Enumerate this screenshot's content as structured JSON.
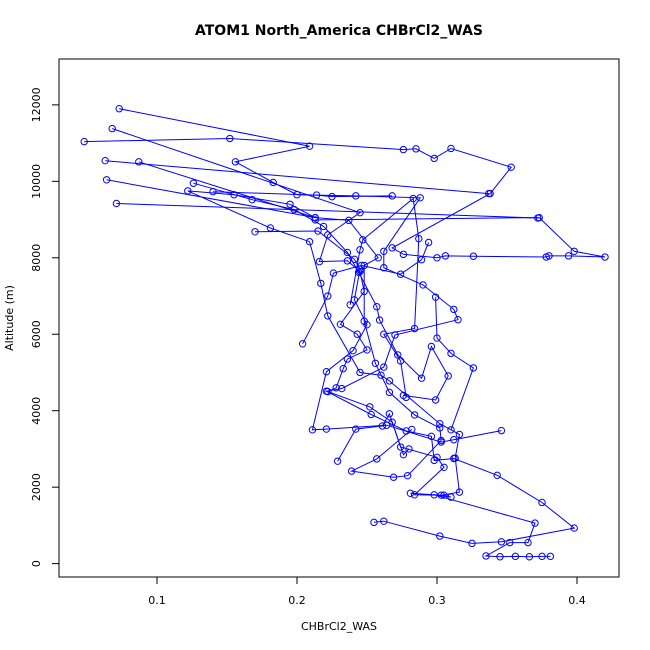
{
  "chart_data": {
    "type": "line",
    "title": "ATOM1 North_America CHBrCl2_WAS",
    "xlabel": "CHBrCl2_WAS",
    "ylabel": "Altitude (m)",
    "xlim": [
      0.03,
      0.43
    ],
    "ylim": [
      -350,
      13200
    ],
    "x_ticks": [
      0.1,
      0.2,
      0.3,
      0.4
    ],
    "x_tick_labels": [
      "0.1",
      "0.2",
      "0.3",
      "0.4"
    ],
    "y_ticks": [
      0,
      2000,
      4000,
      6000,
      8000,
      10000,
      12000
    ],
    "y_tick_labels": [
      "0",
      "2000",
      "4000",
      "6000",
      "8000",
      "10000",
      "12000"
    ],
    "grid": false,
    "marker": "open-circle",
    "color": "#0000ff",
    "series": [
      {
        "values": [
          {
            "x": 0.073,
            "y": 11900
          },
          {
            "x": 0.209,
            "y": 10920
          },
          {
            "x": 0.156,
            "y": 10510
          },
          {
            "x": 0.183,
            "y": 9970
          },
          {
            "x": 0.2,
            "y": 9650
          },
          {
            "x": 0.242,
            "y": 9620
          },
          {
            "x": 0.288,
            "y": 9570
          },
          {
            "x": 0.262,
            "y": 8170
          },
          {
            "x": 0.262,
            "y": 7740
          },
          {
            "x": 0.29,
            "y": 7290
          },
          {
            "x": 0.312,
            "y": 6650
          },
          {
            "x": 0.315,
            "y": 6380
          },
          {
            "x": 0.27,
            "y": 5980
          },
          {
            "x": 0.262,
            "y": 5140
          },
          {
            "x": 0.232,
            "y": 4580
          },
          {
            "x": 0.221,
            "y": 4510
          },
          {
            "x": 0.253,
            "y": 3900
          },
          {
            "x": 0.278,
            "y": 3470
          },
          {
            "x": 0.296,
            "y": 3330
          },
          {
            "x": 0.298,
            "y": 2700
          },
          {
            "x": 0.312,
            "y": 2750
          },
          {
            "x": 0.343,
            "y": 2310
          },
          {
            "x": 0.375,
            "y": 1600
          },
          {
            "x": 0.398,
            "y": 930
          },
          {
            "x": 0.346,
            "y": 570
          },
          {
            "x": 0.325,
            "y": 530
          },
          {
            "x": 0.302,
            "y": 720
          },
          {
            "x": 0.262,
            "y": 1110
          },
          {
            "x": 0.255,
            "y": 1080
          }
        ]
      },
      {
        "values": [
          {
            "x": 0.068,
            "y": 11380
          },
          {
            "x": 0.245,
            "y": 9180
          },
          {
            "x": 0.222,
            "y": 8600
          },
          {
            "x": 0.216,
            "y": 7900
          },
          {
            "x": 0.236,
            "y": 7920
          },
          {
            "x": 0.245,
            "y": 7640
          },
          {
            "x": 0.248,
            "y": 7120
          },
          {
            "x": 0.231,
            "y": 6260
          },
          {
            "x": 0.243,
            "y": 6000
          },
          {
            "x": 0.25,
            "y": 5590
          },
          {
            "x": 0.236,
            "y": 5350
          },
          {
            "x": 0.233,
            "y": 5100
          },
          {
            "x": 0.228,
            "y": 4600
          },
          {
            "x": 0.222,
            "y": 4500
          },
          {
            "x": 0.252,
            "y": 4100
          },
          {
            "x": 0.268,
            "y": 3700
          },
          {
            "x": 0.274,
            "y": 3050
          },
          {
            "x": 0.3,
            "y": 2780
          },
          {
            "x": 0.305,
            "y": 2520
          },
          {
            "x": 0.284,
            "y": 1800
          },
          {
            "x": 0.305,
            "y": 1790
          },
          {
            "x": 0.31,
            "y": 1740
          },
          {
            "x": 0.298,
            "y": 1800
          },
          {
            "x": 0.37,
            "y": 1060
          },
          {
            "x": 0.365,
            "y": 550
          },
          {
            "x": 0.352,
            "y": 550
          },
          {
            "x": 0.335,
            "y": 200
          },
          {
            "x": 0.345,
            "y": 180
          },
          {
            "x": 0.356,
            "y": 190
          },
          {
            "x": 0.366,
            "y": 180
          },
          {
            "x": 0.375,
            "y": 190
          },
          {
            "x": 0.381,
            "y": 190
          }
        ]
      },
      {
        "values": [
          {
            "x": 0.048,
            "y": 11040
          },
          {
            "x": 0.152,
            "y": 11120
          },
          {
            "x": 0.276,
            "y": 10830
          },
          {
            "x": 0.285,
            "y": 10850
          },
          {
            "x": 0.298,
            "y": 10600
          },
          {
            "x": 0.31,
            "y": 10860
          },
          {
            "x": 0.353,
            "y": 10370
          },
          {
            "x": 0.338,
            "y": 9680
          },
          {
            "x": 0.268,
            "y": 8260
          },
          {
            "x": 0.276,
            "y": 8090
          },
          {
            "x": 0.3,
            "y": 8000
          },
          {
            "x": 0.306,
            "y": 8050
          },
          {
            "x": 0.326,
            "y": 8040
          },
          {
            "x": 0.378,
            "y": 8020
          },
          {
            "x": 0.38,
            "y": 8050
          },
          {
            "x": 0.394,
            "y": 8050
          },
          {
            "x": 0.42,
            "y": 8020
          },
          {
            "x": 0.398,
            "y": 8170
          },
          {
            "x": 0.373,
            "y": 9050
          },
          {
            "x": 0.213,
            "y": 8990
          }
        ]
      },
      {
        "values": [
          {
            "x": 0.063,
            "y": 10540
          },
          {
            "x": 0.337,
            "y": 9680
          }
        ]
      },
      {
        "values": [
          {
            "x": 0.064,
            "y": 10040
          },
          {
            "x": 0.213,
            "y": 9050
          },
          {
            "x": 0.195,
            "y": 9400
          },
          {
            "x": 0.155,
            "y": 9650
          },
          {
            "x": 0.122,
            "y": 9750
          },
          {
            "x": 0.181,
            "y": 8780
          },
          {
            "x": 0.209,
            "y": 8420
          },
          {
            "x": 0.217,
            "y": 7330
          },
          {
            "x": 0.222,
            "y": 6480
          },
          {
            "x": 0.245,
            "y": 5000
          },
          {
            "x": 0.26,
            "y": 4930
          },
          {
            "x": 0.266,
            "y": 4780
          },
          {
            "x": 0.302,
            "y": 3660
          },
          {
            "x": 0.316,
            "y": 3380
          },
          {
            "x": 0.313,
            "y": 2760
          },
          {
            "x": 0.316,
            "y": 1870
          },
          {
            "x": 0.303,
            "y": 1790
          },
          {
            "x": 0.281,
            "y": 1840
          }
        ]
      },
      {
        "values": [
          {
            "x": 0.071,
            "y": 9420
          },
          {
            "x": 0.372,
            "y": 9040
          }
        ]
      },
      {
        "values": [
          {
            "x": 0.087,
            "y": 10510
          },
          {
            "x": 0.213,
            "y": 9050
          },
          {
            "x": 0.237,
            "y": 8980
          },
          {
            "x": 0.258,
            "y": 8000
          },
          {
            "x": 0.248,
            "y": 7800
          },
          {
            "x": 0.248,
            "y": 6340
          },
          {
            "x": 0.256,
            "y": 5240
          },
          {
            "x": 0.266,
            "y": 4480
          },
          {
            "x": 0.284,
            "y": 3890
          },
          {
            "x": 0.302,
            "y": 3550
          },
          {
            "x": 0.303,
            "y": 3220
          },
          {
            "x": 0.279,
            "y": 2300
          },
          {
            "x": 0.269,
            "y": 2260
          },
          {
            "x": 0.239,
            "y": 2420
          },
          {
            "x": 0.257,
            "y": 2740
          },
          {
            "x": 0.282,
            "y": 3510
          }
        ]
      },
      {
        "values": [
          {
            "x": 0.126,
            "y": 9950
          },
          {
            "x": 0.168,
            "y": 9520
          },
          {
            "x": 0.198,
            "y": 9260
          },
          {
            "x": 0.219,
            "y": 8820
          },
          {
            "x": 0.236,
            "y": 8140
          },
          {
            "x": 0.244,
            "y": 7620
          },
          {
            "x": 0.257,
            "y": 6720
          },
          {
            "x": 0.259,
            "y": 6370
          },
          {
            "x": 0.272,
            "y": 5460
          },
          {
            "x": 0.289,
            "y": 4850
          },
          {
            "x": 0.296,
            "y": 5680
          },
          {
            "x": 0.308,
            "y": 4910
          },
          {
            "x": 0.299,
            "y": 4280
          },
          {
            "x": 0.276,
            "y": 4400
          }
        ]
      },
      {
        "values": [
          {
            "x": 0.14,
            "y": 9730
          },
          {
            "x": 0.214,
            "y": 9640
          },
          {
            "x": 0.225,
            "y": 9600
          },
          {
            "x": 0.268,
            "y": 9620
          }
        ]
      },
      {
        "values": [
          {
            "x": 0.17,
            "y": 8680
          },
          {
            "x": 0.215,
            "y": 8700
          },
          {
            "x": 0.241,
            "y": 7960
          },
          {
            "x": 0.245,
            "y": 7700
          },
          {
            "x": 0.241,
            "y": 6900
          },
          {
            "x": 0.25,
            "y": 6250
          },
          {
            "x": 0.24,
            "y": 5570
          },
          {
            "x": 0.221,
            "y": 5020
          },
          {
            "x": 0.211,
            "y": 3500
          },
          {
            "x": 0.221,
            "y": 3520
          },
          {
            "x": 0.264,
            "y": 3620
          },
          {
            "x": 0.303,
            "y": 3180
          },
          {
            "x": 0.346,
            "y": 3480
          },
          {
            "x": 0.312,
            "y": 3240
          }
        ]
      },
      {
        "values": [
          {
            "x": 0.204,
            "y": 5750
          },
          {
            "x": 0.222,
            "y": 7000
          },
          {
            "x": 0.226,
            "y": 7600
          },
          {
            "x": 0.246,
            "y": 7800
          },
          {
            "x": 0.274,
            "y": 7570
          },
          {
            "x": 0.289,
            "y": 7950
          },
          {
            "x": 0.294,
            "y": 8400
          }
        ]
      },
      {
        "values": [
          {
            "x": 0.229,
            "y": 2680
          },
          {
            "x": 0.242,
            "y": 3520
          },
          {
            "x": 0.261,
            "y": 3600
          },
          {
            "x": 0.266,
            "y": 3920
          },
          {
            "x": 0.276,
            "y": 2850
          },
          {
            "x": 0.28,
            "y": 3000
          }
        ]
      },
      {
        "values": [
          {
            "x": 0.238,
            "y": 6770
          },
          {
            "x": 0.245,
            "y": 8210
          },
          {
            "x": 0.247,
            "y": 8470
          },
          {
            "x": 0.283,
            "y": 9550
          },
          {
            "x": 0.287,
            "y": 8500
          },
          {
            "x": 0.284,
            "y": 6150
          },
          {
            "x": 0.262,
            "y": 6000
          },
          {
            "x": 0.274,
            "y": 5300
          },
          {
            "x": 0.278,
            "y": 4350
          }
        ]
      },
      {
        "values": [
          {
            "x": 0.299,
            "y": 6970
          },
          {
            "x": 0.3,
            "y": 5900
          },
          {
            "x": 0.31,
            "y": 5500
          },
          {
            "x": 0.326,
            "y": 5120
          },
          {
            "x": 0.31,
            "y": 3500
          }
        ]
      }
    ]
  }
}
